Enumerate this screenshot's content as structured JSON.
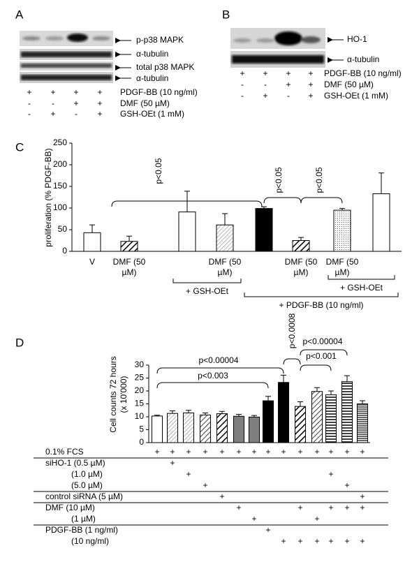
{
  "panel_a": {
    "label": "A",
    "bands": [
      "p-p38 MAPK",
      "α-tubulin",
      "total p38 MAPK",
      "α-tubulin"
    ],
    "treatments": [
      {
        "label": "PDGF-BB (10 ng/ml)",
        "signs": [
          "+",
          "+",
          "+",
          "+"
        ]
      },
      {
        "label": "DMF (50 µM)",
        "signs": [
          "-",
          "-",
          "+",
          "+"
        ]
      },
      {
        "label": "GSH-OEt (1 mM)",
        "signs": [
          "-",
          "+",
          "-",
          "+"
        ]
      }
    ]
  },
  "panel_b": {
    "label": "B",
    "bands": [
      "HO-1",
      "α-tubulin"
    ],
    "treatments": [
      {
        "label": "PDGF-BB (10 ng/ml)",
        "signs": [
          "+",
          "+",
          "+",
          "+"
        ]
      },
      {
        "label": "DMF (50 µM)",
        "signs": [
          "-",
          "-",
          "+",
          "+"
        ]
      },
      {
        "label": "GSH-OEt (1 mM)",
        "signs": [
          "-",
          "+",
          "-",
          "+"
        ]
      }
    ]
  },
  "chart_data": [
    {
      "type": "bar",
      "label": "C",
      "ylabel": "proliferation (% PDGF-BB)",
      "categories": [
        "V",
        "DMF (50 µM)",
        null,
        "DMF (50 µM)",
        null,
        "DMF (50 µM)",
        "DMF (50 µM)",
        null
      ],
      "values": [
        43,
        23,
        91,
        61,
        99,
        25,
        95,
        133
      ],
      "errors": [
        18,
        12,
        48,
        26,
        4,
        7,
        4,
        48
      ],
      "fills": [
        "white",
        "url(#hatch-bold)",
        "white",
        "url(#hatch-light)",
        "black",
        "url(#hatch-bold)",
        "url(#dots)",
        "white"
      ],
      "ylim": [
        0,
        250
      ],
      "yticks": [
        0,
        50,
        100,
        150,
        200,
        250
      ],
      "annotations": [
        "p<0.05",
        "p<0.05",
        "p<0.05"
      ],
      "groups": [
        "+ GSH-OEt",
        "+ GSH-OEt",
        "+ PDGF-BB (10 ng/ml)"
      ]
    },
    {
      "type": "bar",
      "label": "D",
      "ylabel": [
        "Cell counts 72 hours",
        "(x 10'000)"
      ],
      "values": [
        10.3,
        11.3,
        11.5,
        10.7,
        11.2,
        10.2,
        9.9,
        16.2,
        23.3,
        14,
        19.8,
        18.5,
        23.6,
        15
      ],
      "errors": [
        0.3,
        1,
        1,
        0.8,
        0.9,
        0.7,
        0.6,
        1.7,
        2.8,
        1.8,
        1.5,
        1.5,
        2.3,
        1.2
      ],
      "fills": [
        "white",
        "url(#hatch-light)",
        "url(#hatch-light)",
        "url(#hatch)",
        "url(#hatch-bold)",
        "#7f7f7f",
        "#7f7f7f",
        "black",
        "black",
        "url(#hatch-bold)",
        "url(#hatch)",
        "url(#horiz)",
        "url(#horiz)",
        "url(#horiz-dense)"
      ],
      "ylim": [
        0,
        30
      ],
      "yticks": [
        0,
        5,
        10,
        15,
        20,
        25,
        30
      ],
      "annotations": [
        "p<0.00004",
        "p<0.003",
        "p<0.0008",
        "p<0.001",
        "p<0.00004"
      ],
      "conditions": [
        [
          {
            "label": "0.1% FCS",
            "marks": [
              "+",
              "+",
              "+",
              "+",
              "+",
              "+",
              "+",
              "+",
              "+",
              "+",
              "+",
              "+",
              "+",
              "+"
            ]
          }
        ],
        [
          {
            "label": "siHO-1 (0.5 µM)",
            "marks": [
              null,
              "+",
              null,
              null,
              null,
              null,
              null,
              null,
              null,
              null,
              null,
              null,
              null,
              null
            ]
          },
          {
            "label": "(1.0 µM)",
            "marks": [
              null,
              null,
              "+",
              null,
              null,
              null,
              null,
              null,
              null,
              null,
              null,
              "+",
              null,
              null
            ]
          },
          {
            "label": "(5.0 µM)",
            "marks": [
              null,
              null,
              null,
              "+",
              null,
              null,
              null,
              null,
              null,
              null,
              null,
              null,
              "+",
              null
            ]
          }
        ],
        [
          {
            "label": "control siRNA (5 µM)",
            "marks": [
              null,
              null,
              null,
              null,
              "+",
              null,
              null,
              null,
              null,
              null,
              null,
              null,
              null,
              "+"
            ]
          }
        ],
        [
          {
            "label": "DMF (10 µM)",
            "marks": [
              null,
              null,
              null,
              null,
              null,
              "+",
              null,
              null,
              null,
              "+",
              null,
              "+",
              "+",
              "+"
            ]
          },
          {
            "label": "(1 µM)",
            "marks": [
              null,
              null,
              null,
              null,
              null,
              null,
              "+",
              null,
              null,
              null,
              "+",
              null,
              null,
              null
            ]
          }
        ],
        [
          {
            "label": "PDGF-BB (1 ng/ml)",
            "marks": [
              null,
              null,
              null,
              null,
              null,
              null,
              null,
              "+",
              null,
              null,
              null,
              null,
              null,
              null
            ]
          },
          {
            "label": "(10 ng/ml)",
            "marks": [
              null,
              null,
              null,
              null,
              null,
              null,
              null,
              null,
              "+",
              "+",
              "+",
              "+",
              "+",
              "+"
            ]
          }
        ]
      ]
    }
  ]
}
